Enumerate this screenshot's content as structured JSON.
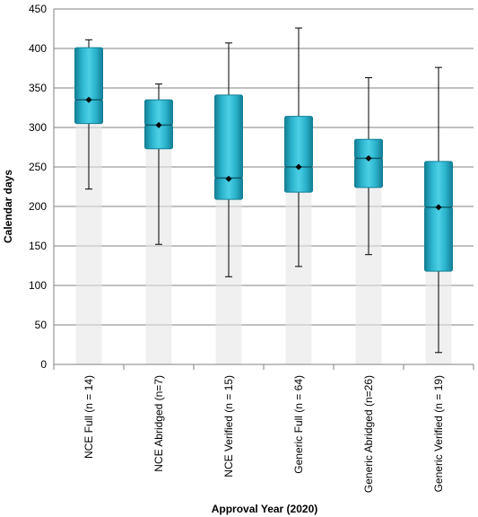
{
  "chart_data": {
    "type": "box",
    "title": "",
    "xlabel": "Approval Year (2020)",
    "ylabel": "Calendar days",
    "ylim": [
      0,
      450
    ],
    "yticks": [
      0,
      50,
      100,
      150,
      200,
      250,
      300,
      350,
      400,
      450
    ],
    "grid": true,
    "legend": "none",
    "colors": {
      "box": "#2bb3cc",
      "box_dark": "#137f95",
      "whisker": "#000000",
      "grid": "#808080"
    },
    "categories": [
      "NCE Full (n = 14)",
      "NCE Abridged (n=7)",
      "NCE Verified (n = 15)",
      "Generic Full (n = 64)",
      "Generic Abridged (n=26)",
      "Generic Verified (n = 19)"
    ],
    "boxes": [
      {
        "min": 222,
        "q1": 305,
        "median": 335,
        "q3": 401,
        "max": 411,
        "mean": 335
      },
      {
        "min": 152,
        "q1": 273,
        "median": 303,
        "q3": 335,
        "max": 355,
        "mean": 303
      },
      {
        "min": 111,
        "q1": 209,
        "median": 236,
        "q3": 341,
        "max": 407,
        "mean": 235
      },
      {
        "min": 124,
        "q1": 218,
        "median": 250,
        "q3": 314,
        "max": 426,
        "mean": 250
      },
      {
        "min": 139,
        "q1": 224,
        "median": 261,
        "q3": 285,
        "max": 363,
        "mean": 261
      },
      {
        "min": 15,
        "q1": 118,
        "median": 199,
        "q3": 257,
        "max": 376,
        "mean": 199
      }
    ]
  }
}
